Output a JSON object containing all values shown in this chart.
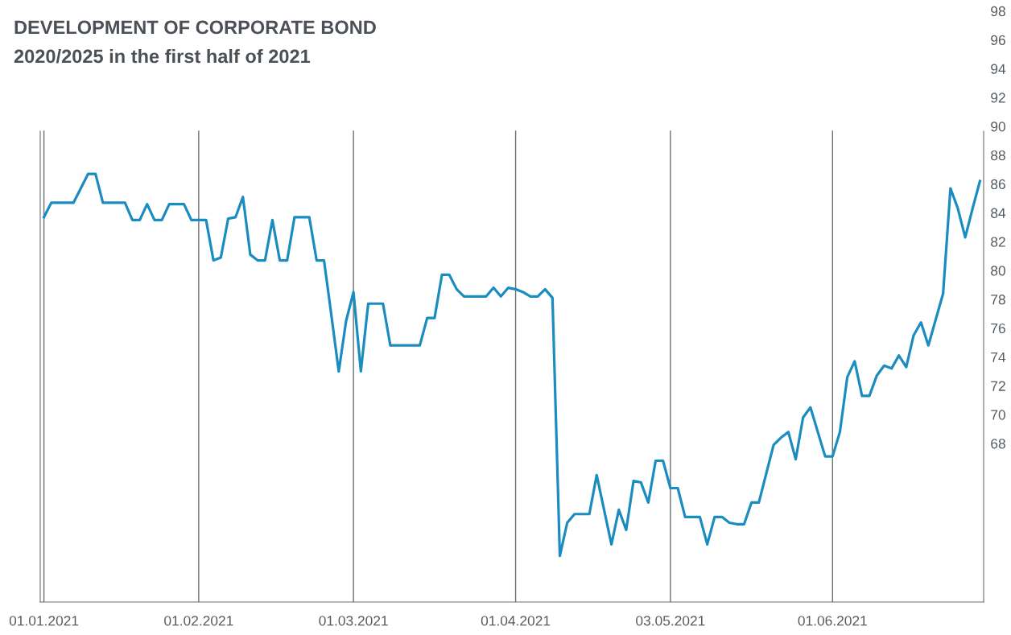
{
  "chart_data": {
    "type": "line",
    "title": "DEVELOPMENT OF CORPORATE BOND",
    "subtitle": "2020/2025 in the first half of 2021",
    "categories": [
      "01.01.2021",
      null,
      null,
      null,
      null,
      null,
      null,
      null,
      null,
      null,
      null,
      null,
      null,
      null,
      null,
      null,
      null,
      null,
      null,
      null,
      null,
      "01.02.2021",
      null,
      null,
      null,
      null,
      null,
      null,
      null,
      null,
      null,
      null,
      null,
      null,
      null,
      null,
      null,
      null,
      null,
      null,
      null,
      null,
      "01.03.2021",
      null,
      null,
      null,
      null,
      null,
      null,
      null,
      null,
      null,
      null,
      null,
      null,
      null,
      null,
      null,
      null,
      null,
      null,
      null,
      null,
      null,
      "01.04.2021",
      null,
      null,
      null,
      null,
      null,
      null,
      null,
      null,
      null,
      null,
      null,
      null,
      null,
      null,
      null,
      null,
      null,
      null,
      null,
      null,
      "03.05.2021",
      null,
      null,
      null,
      null,
      null,
      null,
      null,
      null,
      null,
      null,
      null,
      null,
      null,
      null,
      null,
      null,
      null,
      null,
      null,
      null,
      null,
      "01.06.2021",
      null,
      null,
      null,
      null,
      null,
      null,
      null,
      null,
      null,
      null,
      null,
      null,
      null,
      null,
      null,
      null,
      null,
      null,
      null,
      null
    ],
    "series": [
      {
        "color": "#1a8cbf",
        "values": [
          83.7,
          84.7,
          84.7,
          84.7,
          84.7,
          85.7,
          86.7,
          86.7,
          84.7,
          84.7,
          84.7,
          84.7,
          83.5,
          83.5,
          84.6,
          83.5,
          83.5,
          84.6,
          84.6,
          84.6,
          83.5,
          83.5,
          83.5,
          80.7,
          80.9,
          83.6,
          83.7,
          85.1,
          81.1,
          80.7,
          80.7,
          83.5,
          80.7,
          80.7,
          83.7,
          83.7,
          83.7,
          80.7,
          80.7,
          76.9,
          73.0,
          76.5,
          78.5,
          73.0,
          77.7,
          77.7,
          77.7,
          74.8,
          74.8,
          74.8,
          74.8,
          74.8,
          76.7,
          76.7,
          79.7,
          79.7,
          78.7,
          78.2,
          78.2,
          78.2,
          78.2,
          78.8,
          78.2,
          78.8,
          78.7,
          78.5,
          78.2,
          78.2,
          78.7,
          78.1,
          60.2,
          62.5,
          63.1,
          63.1,
          63.1,
          65.8,
          63.4,
          61.0,
          63.4,
          62.0,
          65.4,
          65.3,
          63.9,
          66.8,
          66.8,
          64.9,
          64.9,
          62.9,
          62.9,
          62.9,
          61.0,
          62.9,
          62.9,
          62.5,
          62.4,
          62.4,
          63.9,
          63.9,
          65.9,
          67.9,
          68.4,
          68.8,
          66.9,
          69.8,
          70.5,
          68.8,
          67.1,
          67.1,
          68.8,
          72.6,
          73.7,
          71.3,
          71.3,
          72.7,
          73.4,
          73.2,
          74.1,
          73.3,
          75.5,
          76.4,
          74.8,
          76.6,
          78.4,
          85.7,
          84.3,
          82.3,
          84.3,
          86.2
        ]
      }
    ],
    "ylim": [
      57,
      98
    ],
    "yticks": [
      68,
      70,
      72,
      74,
      76,
      78,
      80,
      82,
      84,
      86,
      88,
      90,
      92,
      94,
      96,
      98
    ],
    "grid": "x",
    "marker": "none",
    "line_style": "solid"
  }
}
